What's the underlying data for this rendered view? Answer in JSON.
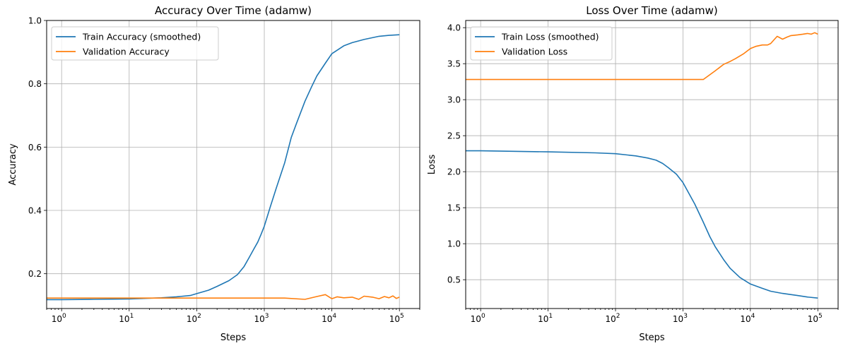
{
  "colors": {
    "train": "#1f77b4",
    "validation": "#ff7f0e",
    "grid": "#b0b0b0"
  },
  "chart_data": [
    {
      "type": "line",
      "title": "Accuracy Over Time (adamw)",
      "xlabel": "Steps",
      "ylabel": "Accuracy",
      "xscale": "log",
      "xlim": [
        0.6,
        200000
      ],
      "ylim": [
        0.09,
        1.0
      ],
      "xticks": [
        {
          "value": 1,
          "base": "10",
          "exp": "0"
        },
        {
          "value": 10,
          "base": "10",
          "exp": "1"
        },
        {
          "value": 100,
          "base": "10",
          "exp": "2"
        },
        {
          "value": 1000,
          "base": "10",
          "exp": "3"
        },
        {
          "value": 10000,
          "base": "10",
          "exp": "4"
        },
        {
          "value": 100000,
          "base": "10",
          "exp": "5"
        }
      ],
      "yticks": [
        {
          "value": 0.2,
          "label": "0.2"
        },
        {
          "value": 0.4,
          "label": "0.4"
        },
        {
          "value": 0.6,
          "label": "0.6"
        },
        {
          "value": 0.8,
          "label": "0.8"
        },
        {
          "value": 1.0,
          "label": "1.0"
        }
      ],
      "grid": true,
      "legend": "upper left",
      "series": [
        {
          "name": "Train Accuracy (smoothed)",
          "color": "#1f77b4",
          "x": [
            0.6,
            1,
            3,
            10,
            30,
            50,
            80,
            100,
            150,
            200,
            300,
            400,
            500,
            600,
            700,
            800,
            900,
            1000,
            1200,
            1500,
            2000,
            2500,
            3000,
            4000,
            5000,
            6000,
            8000,
            10000,
            15000,
            20000,
            30000,
            50000,
            70000,
            100000
          ],
          "y": [
            0.118,
            0.118,
            0.119,
            0.12,
            0.124,
            0.127,
            0.131,
            0.137,
            0.148,
            0.16,
            0.178,
            0.197,
            0.222,
            0.252,
            0.278,
            0.3,
            0.325,
            0.35,
            0.405,
            0.47,
            0.55,
            0.63,
            0.675,
            0.745,
            0.79,
            0.825,
            0.865,
            0.895,
            0.92,
            0.93,
            0.94,
            0.95,
            0.953,
            0.955
          ]
        },
        {
          "name": "Validation Accuracy",
          "color": "#ff7f0e",
          "x": [
            0.6,
            1,
            10,
            100,
            1000,
            2000,
            4000,
            6000,
            8000,
            10000,
            12000,
            15000,
            20000,
            25000,
            30000,
            40000,
            50000,
            60000,
            70000,
            80000,
            90000,
            100000
          ],
          "y": [
            0.123,
            0.123,
            0.123,
            0.123,
            0.123,
            0.123,
            0.119,
            0.128,
            0.134,
            0.121,
            0.127,
            0.124,
            0.126,
            0.119,
            0.129,
            0.126,
            0.121,
            0.128,
            0.124,
            0.13,
            0.122,
            0.126
          ]
        }
      ]
    },
    {
      "type": "line",
      "title": "Loss Over Time (adamw)",
      "xlabel": "Steps",
      "ylabel": "Loss",
      "xscale": "log",
      "xlim": [
        0.6,
        200000
      ],
      "ylim": [
        0.1,
        4.1
      ],
      "xticks": [
        {
          "value": 1,
          "base": "10",
          "exp": "0"
        },
        {
          "value": 10,
          "base": "10",
          "exp": "1"
        },
        {
          "value": 100,
          "base": "10",
          "exp": "2"
        },
        {
          "value": 1000,
          "base": "10",
          "exp": "3"
        },
        {
          "value": 10000,
          "base": "10",
          "exp": "4"
        },
        {
          "value": 100000,
          "base": "10",
          "exp": "5"
        }
      ],
      "yticks": [
        {
          "value": 0.5,
          "label": "0.5"
        },
        {
          "value": 1.0,
          "label": "1.0"
        },
        {
          "value": 1.5,
          "label": "1.5"
        },
        {
          "value": 2.0,
          "label": "2.0"
        },
        {
          "value": 2.5,
          "label": "2.5"
        },
        {
          "value": 3.0,
          "label": "3.0"
        },
        {
          "value": 3.5,
          "label": "3.5"
        },
        {
          "value": 4.0,
          "label": "4.0"
        }
      ],
      "grid": true,
      "legend": "upper left",
      "series": [
        {
          "name": "Train Loss (smoothed)",
          "color": "#1f77b4",
          "x": [
            0.6,
            1,
            10,
            50,
            100,
            200,
            300,
            400,
            500,
            600,
            800,
            1000,
            1500,
            2000,
            2500,
            3000,
            4000,
            5000,
            7000,
            10000,
            15000,
            20000,
            30000,
            50000,
            70000,
            100000
          ],
          "y": [
            2.29,
            2.29,
            2.275,
            2.262,
            2.25,
            2.22,
            2.19,
            2.16,
            2.115,
            2.06,
            1.965,
            1.85,
            1.55,
            1.3,
            1.1,
            0.96,
            0.78,
            0.66,
            0.53,
            0.44,
            0.38,
            0.34,
            0.31,
            0.28,
            0.26,
            0.245
          ]
        },
        {
          "name": "Validation Loss",
          "color": "#ff7f0e",
          "x": [
            0.6,
            1,
            10,
            100,
            1000,
            2000,
            3000,
            4000,
            5000,
            6000,
            8000,
            10000,
            12000,
            15000,
            18000,
            20000,
            25000,
            30000,
            35000,
            40000,
            50000,
            60000,
            70000,
            80000,
            90000,
            100000
          ],
          "y": [
            3.28,
            3.28,
            3.28,
            3.28,
            3.28,
            3.28,
            3.4,
            3.49,
            3.53,
            3.57,
            3.64,
            3.71,
            3.74,
            3.76,
            3.76,
            3.78,
            3.88,
            3.84,
            3.87,
            3.89,
            3.9,
            3.91,
            3.92,
            3.91,
            3.93,
            3.91
          ]
        }
      ]
    }
  ]
}
